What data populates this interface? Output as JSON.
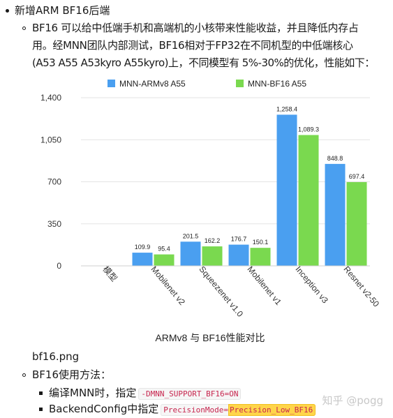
{
  "list": {
    "item1": "新增ARM BF16后端",
    "sub1_lines": [
      "BF16 可以给中低端手机和高端机的小核带来性能收益，并且降低内存占",
      "用。经MNN团队内部测试，BF16相对于FP32在不同机型的中低端核心",
      "(A53 A55 A53kyro A55kyro)上，不同模型有 5%-30%的优化，性能如下："
    ],
    "caption": "bf16.png",
    "sub2": "BF16使用方法：",
    "step1_text": "编译MNN时，指定",
    "step1_code": "-DMNN_SUPPORT_BF16=ON",
    "step2_text": "BackendConfig中指定",
    "step2_code1": "PrecisionMode=",
    "step2_code2": "Precision_Low_BF16"
  },
  "watermark": "知乎 @pogg",
  "colors": {
    "series1": "#4a9ff0",
    "series2": "#7ad94f",
    "grid": "#e3e3e3"
  },
  "chart_data": {
    "type": "bar",
    "title": "ARMv8 与 BF16性能对比",
    "xlabel": "",
    "ylabel": "",
    "categories": [
      "模型",
      "Mobilenet v2",
      "Squeezenet v1.0",
      "Mobilenet v1",
      "Inception v3",
      "Resnet v2-50"
    ],
    "series": [
      {
        "name": "MNN-ARMv8 A55",
        "values": [
          null,
          109.9,
          201.5,
          176.7,
          1258.4,
          848.8
        ],
        "labels": [
          "",
          "109.9",
          "201.5",
          "176.7",
          "1,258.4",
          "848.8"
        ]
      },
      {
        "name": "MNN-BF16 A55",
        "values": [
          null,
          95.4,
          162.2,
          150.1,
          1089.3,
          697.4
        ],
        "labels": [
          "",
          "95.4",
          "162.2",
          "150.1",
          "1,089.3",
          "697.4"
        ]
      }
    ],
    "yticks": [
      "0",
      "350",
      "700",
      "1,050",
      "1,400"
    ],
    "ylim": [
      0,
      1400
    ],
    "grid": true,
    "legend": "top-center"
  }
}
